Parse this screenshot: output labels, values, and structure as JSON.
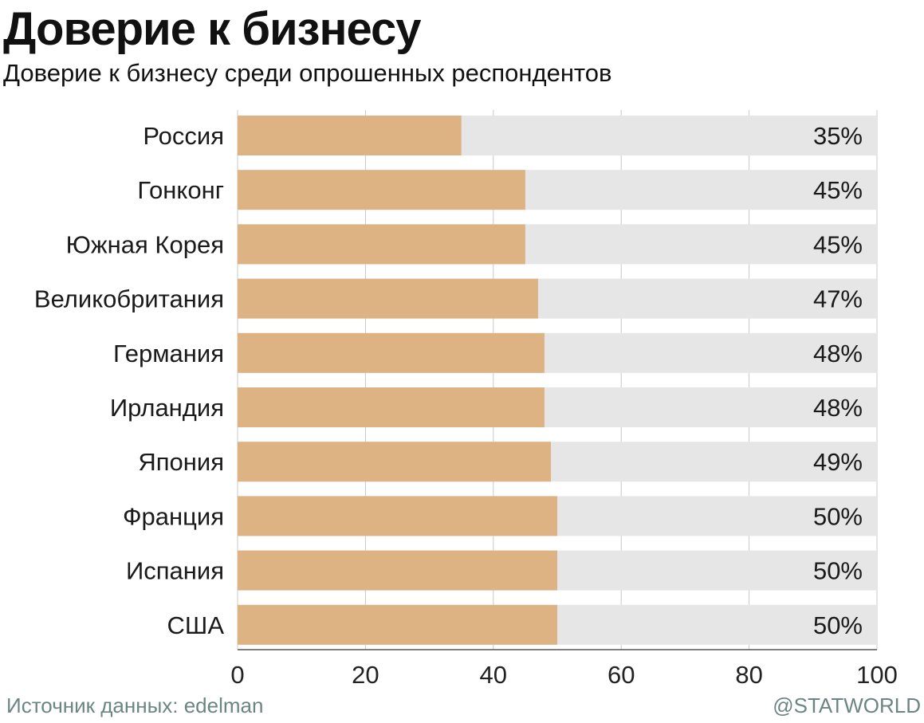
{
  "header": {
    "title": "Доверие к бизнесу",
    "subtitle": "Доверие к бизнесу среди опрошенных респондентов"
  },
  "footer": {
    "source": "Источник данных: edelman",
    "brand": "@STATWORLD"
  },
  "colors": {
    "bar": "#deb384",
    "track": "#e6e6e6",
    "grid": "#c9c9c9"
  },
  "chart_data": {
    "type": "bar",
    "orientation": "horizontal",
    "title": "Доверие к бизнесу",
    "subtitle": "Доверие к бизнесу среди опрошенных респондентов",
    "xlabel": "",
    "ylabel": "",
    "categories": [
      "Россия",
      "Гонконг",
      "Южная Корея",
      "Великобритания",
      "Германия",
      "Ирландия",
      "Япония",
      "Франция",
      "Испания",
      "США"
    ],
    "values": [
      35,
      45,
      45,
      47,
      48,
      48,
      49,
      50,
      50,
      50
    ],
    "data_labels": [
      "35%",
      "45%",
      "45%",
      "47%",
      "48%",
      "48%",
      "49%",
      "50%",
      "50%",
      "50%"
    ],
    "xlim": [
      0,
      100
    ],
    "xticks": [
      0,
      20,
      40,
      60,
      80,
      100
    ],
    "grid": true
  }
}
